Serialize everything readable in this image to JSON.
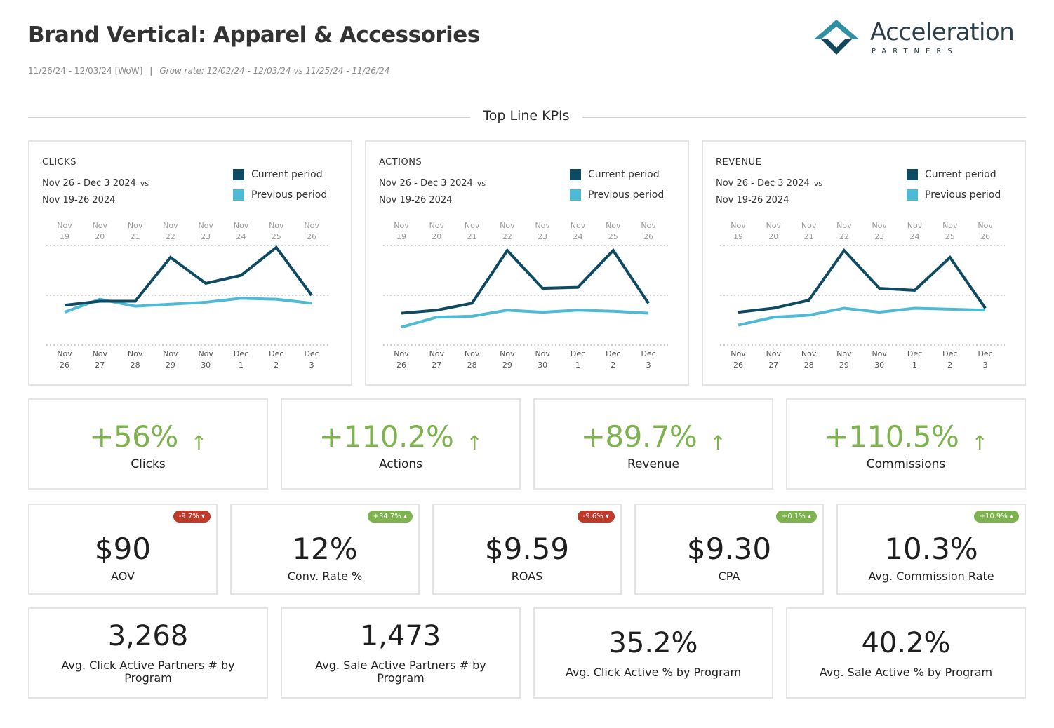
{
  "header": {
    "title": "Brand Vertical: Apparel & Accessories",
    "date_range": "11/26/24 - 12/03/24 [WoW]",
    "separator": "|",
    "grow_rate": "Grow rate: 12/02/24 - 12/03/24 vs 11/25/24 - 11/26/24"
  },
  "logo": {
    "name": "Acceleration",
    "sub": "PARTNERS"
  },
  "section": {
    "title": "Top Line KPIs"
  },
  "colors": {
    "current": "#0e4a61",
    "previous": "#4fbad6",
    "positive": "#7db24f",
    "negative": "#c0392b"
  },
  "legend": {
    "current": "Current period",
    "previous": "Previous period"
  },
  "charts": [
    {
      "metric": "CLICKS",
      "period_current": "Nov 26 - Dec 3 2024",
      "vs": "vs",
      "period_previous": "Nov 19-26 2024",
      "top_ticks": [
        [
          "Nov",
          "19"
        ],
        [
          "Nov",
          "20"
        ],
        [
          "Nov",
          "21"
        ],
        [
          "Nov",
          "22"
        ],
        [
          "Nov",
          "23"
        ],
        [
          "Nov",
          "24"
        ],
        [
          "Nov",
          "25"
        ],
        [
          "Nov",
          "26"
        ]
      ],
      "bottom_ticks": [
        [
          "Nov",
          "26"
        ],
        [
          "Nov",
          "27"
        ],
        [
          "Nov",
          "28"
        ],
        [
          "Nov",
          "29"
        ],
        [
          "Nov",
          "30"
        ],
        [
          "Dec",
          "1"
        ],
        [
          "Dec",
          "2"
        ],
        [
          "Dec",
          "3"
        ]
      ],
      "current": [
        40,
        44,
        44,
        88,
        62,
        70,
        98,
        50
      ],
      "previous": [
        33,
        46,
        39,
        41,
        43,
        47,
        46,
        42
      ]
    },
    {
      "metric": "ACTIONS",
      "period_current": "Nov 26 - Dec 3 2024",
      "vs": "vs",
      "period_previous": "Nov 19-26 2024",
      "top_ticks": [
        [
          "Nov",
          "19"
        ],
        [
          "Nov",
          "20"
        ],
        [
          "Nov",
          "21"
        ],
        [
          "Nov",
          "22"
        ],
        [
          "Nov",
          "23"
        ],
        [
          "Nov",
          "24"
        ],
        [
          "Nov",
          "25"
        ],
        [
          "Nov",
          "26"
        ]
      ],
      "bottom_ticks": [
        [
          "Nov",
          "26"
        ],
        [
          "Nov",
          "27"
        ],
        [
          "Nov",
          "28"
        ],
        [
          "Nov",
          "29"
        ],
        [
          "Nov",
          "30"
        ],
        [
          "Dec",
          "1"
        ],
        [
          "Dec",
          "2"
        ],
        [
          "Dec",
          "3"
        ]
      ],
      "current": [
        32,
        35,
        42,
        95,
        57,
        58,
        95,
        42
      ],
      "previous": [
        18,
        28,
        29,
        35,
        33,
        35,
        34,
        32
      ]
    },
    {
      "metric": "REVENUE",
      "period_current": "Nov 26 - Dec 3 2024",
      "vs": "vs",
      "period_previous": "Nov 19-26 2024",
      "top_ticks": [
        [
          "Nov",
          "19"
        ],
        [
          "Nov",
          "20"
        ],
        [
          "Nov",
          "21"
        ],
        [
          "Nov",
          "22"
        ],
        [
          "Nov",
          "23"
        ],
        [
          "Nov",
          "24"
        ],
        [
          "Nov",
          "25"
        ],
        [
          "Nov",
          "26"
        ]
      ],
      "bottom_ticks": [
        [
          "Nov",
          "26"
        ],
        [
          "Nov",
          "27"
        ],
        [
          "Nov",
          "28"
        ],
        [
          "Nov",
          "29"
        ],
        [
          "Nov",
          "30"
        ],
        [
          "Dec",
          "1"
        ],
        [
          "Dec",
          "2"
        ],
        [
          "Dec",
          "3"
        ]
      ],
      "current": [
        33,
        37,
        45,
        95,
        57,
        55,
        88,
        37
      ],
      "previous": [
        20,
        28,
        30,
        37,
        33,
        37,
        36,
        35
      ]
    }
  ],
  "growth_kpis": [
    {
      "value": "+56%",
      "label": "Clicks",
      "arrow": "↑"
    },
    {
      "value": "+110.2%",
      "label": "Actions",
      "arrow": "↑"
    },
    {
      "value": "+89.7%",
      "label": "Revenue",
      "arrow": "↑"
    },
    {
      "value": "+110.5%",
      "label": "Commissions",
      "arrow": "↑"
    }
  ],
  "metric_kpis": [
    {
      "value": "$90",
      "label": "AOV",
      "badge": "-9.7% ▾",
      "badge_type": "red"
    },
    {
      "value": "12%",
      "label": "Conv. Rate %",
      "badge": "+34.7% ▴",
      "badge_type": "green"
    },
    {
      "value": "$9.59",
      "label": "ROAS",
      "badge": "-9.6% ▾",
      "badge_type": "red"
    },
    {
      "value": "$9.30",
      "label": "CPA",
      "badge": "+0.1% ▴",
      "badge_type": "green"
    },
    {
      "value": "10.3%",
      "label": "Avg. Commission Rate",
      "badge": "+10.9% ▴",
      "badge_type": "green"
    }
  ],
  "partner_kpis": [
    {
      "value": "3,268",
      "label": "Avg. Click Active Partners # by Program"
    },
    {
      "value": "1,473",
      "label": "Avg. Sale Active Partners # by Program"
    },
    {
      "value": "35.2%",
      "label": "Avg. Click Active % by Program"
    },
    {
      "value": "40.2%",
      "label": "Avg. Sale Active % by Program"
    }
  ]
}
